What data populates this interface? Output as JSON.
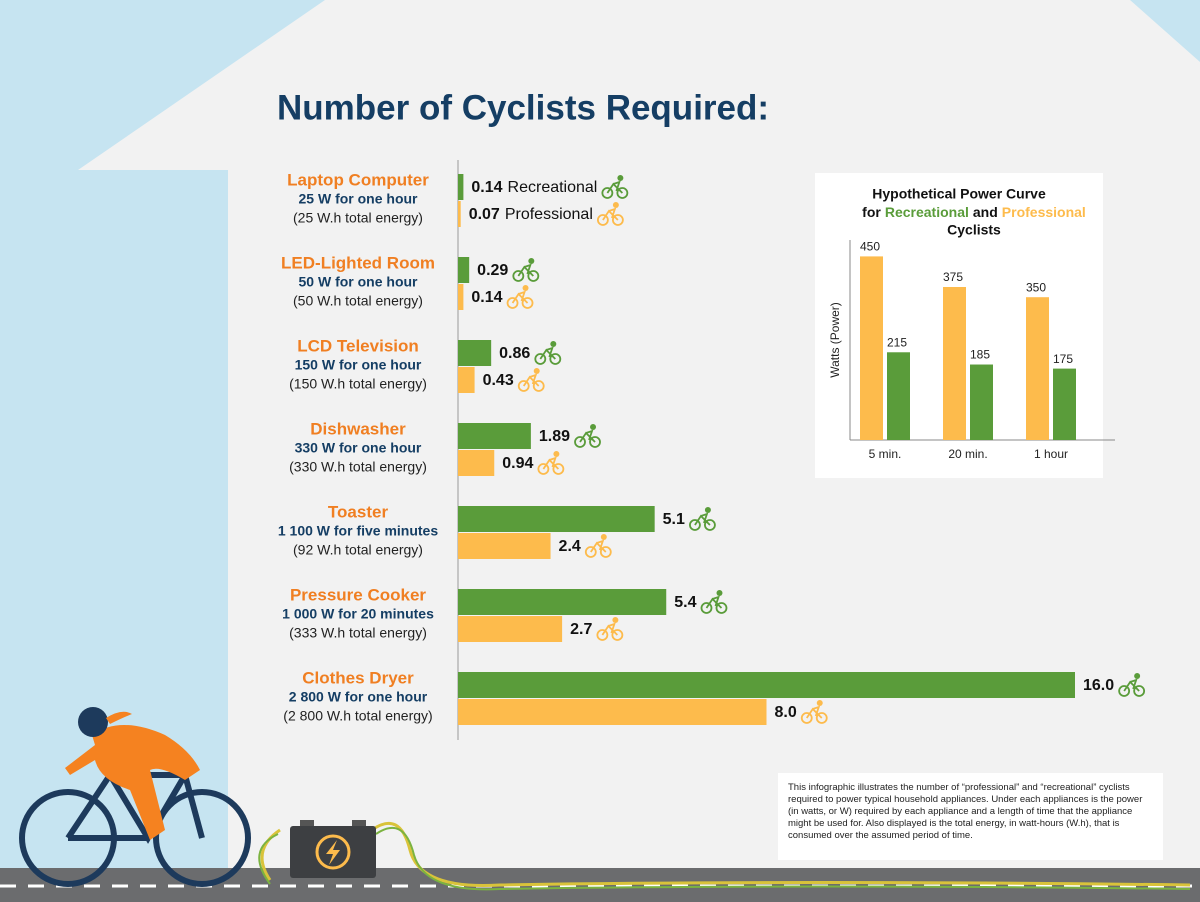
{
  "header": {
    "title": "Number of Cyclists Required:"
  },
  "chart_data": [
    {
      "type": "bar",
      "orientation": "horizontal",
      "categories": [
        "Laptop Computer",
        "LED-Lighted Room",
        "LCD Television",
        "Dishwasher",
        "Toaster",
        "Pressure Cooker",
        "Clothes Dryer"
      ],
      "category_power": [
        "25 W for one hour",
        "50 W for one hour",
        "150 W for one hour",
        "330 W for one hour",
        "1 100 W for five minutes",
        "1 000 W for 20 minutes",
        "2 800 W for one hour"
      ],
      "category_energy": [
        "(25 W.h total energy)",
        "(50 W.h total energy)",
        "(150 W.h total energy)",
        "(330 W.h total energy)",
        "(92 W.h total energy)",
        "(333 W.h total energy)",
        "(2 800 W.h total energy)"
      ],
      "xlim": [
        0,
        16
      ],
      "series": [
        {
          "name": "Recreational",
          "color": "#5a9c3a",
          "values": [
            0.14,
            0.29,
            0.86,
            1.89,
            5.1,
            5.4,
            16.0
          ],
          "value_labels": [
            "0.14",
            "0.29",
            "0.86",
            "1.89",
            "5.1",
            "5.4",
            "16.0"
          ]
        },
        {
          "name": "Professional",
          "color": "#fdbb4c",
          "values": [
            0.07,
            0.14,
            0.43,
            0.94,
            2.4,
            2.7,
            8.0
          ],
          "value_labels": [
            "0.07",
            "0.14",
            "0.43",
            "0.94",
            "2.4",
            "2.7",
            "8.0"
          ]
        }
      ]
    },
    {
      "type": "bar",
      "orientation": "vertical",
      "title": "Hypothetical Power Curve",
      "title_words": [
        "for",
        "and",
        "Cyclists"
      ],
      "ylabel": "Watts (Power)",
      "categories": [
        "5 min.",
        "20 min.",
        "1 hour"
      ],
      "ylim": [
        0,
        500
      ],
      "series": [
        {
          "name": "Professional",
          "color": "#fdbb4c",
          "values": [
            450,
            375,
            350
          ]
        },
        {
          "name": "Recreational",
          "color": "#5a9c3a",
          "values": [
            215,
            185,
            175
          ]
        }
      ]
    }
  ],
  "note": "This infographic illustrates the number of “professional” and “recreational” cyclists required to power typical household appliances. Under each appliances is the power (in watts, or W) required by each appliance and a length of time that the appliance might be used for. Also displayed is the total energy, in watt-hours (W.h), that is consumed over the assumed period of time."
}
